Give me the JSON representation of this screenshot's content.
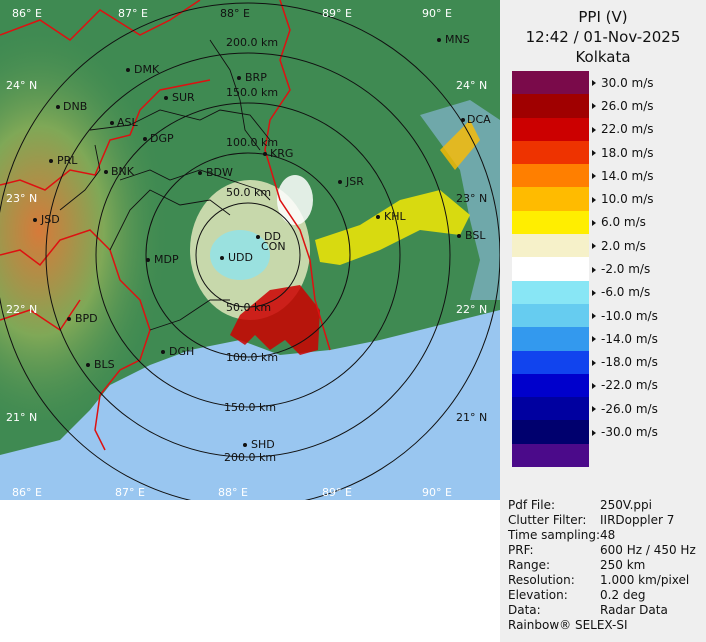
{
  "header": {
    "product": "PPI (V)",
    "datetime": "12:42 / 01-Nov-2025",
    "station": "Kolkata"
  },
  "colorscale": [
    {
      "label": "30.0 m/s",
      "color": "#7a0a4a"
    },
    {
      "label": "26.0 m/s",
      "color": "#a00000"
    },
    {
      "label": "22.0 m/s",
      "color": "#cc0000"
    },
    {
      "label": "18.0 m/s",
      "color": "#ee3300"
    },
    {
      "label": "14.0 m/s",
      "color": "#ff7f00"
    },
    {
      "label": "10.0 m/s",
      "color": "#ffbb00"
    },
    {
      "label": "6.0 m/s",
      "color": "#ffee00"
    },
    {
      "label": "2.0 m/s",
      "color": "#f6f1c9"
    },
    {
      "label": "-2.0 m/s",
      "color": "#ffffff"
    },
    {
      "label": "-6.0 m/s",
      "color": "#88e6f5"
    },
    {
      "label": "-10.0 m/s",
      "color": "#66ccf0"
    },
    {
      "label": "-14.0 m/s",
      "color": "#3399ee"
    },
    {
      "label": "-18.0 m/s",
      "color": "#1144ee"
    },
    {
      "label": "-22.0 m/s",
      "color": "#0000cc"
    },
    {
      "label": "-26.0 m/s",
      "color": "#0000a0"
    },
    {
      "label": "-30.0 m/s",
      "color": "#00006e"
    },
    {
      "label": "",
      "color": "#4b0a8a"
    }
  ],
  "info": [
    {
      "key": "Pdf File:",
      "value": "250V.ppi"
    },
    {
      "key": "Clutter Filter:",
      "value": "IIRDoppler 7"
    },
    {
      "key": "Time sampling:",
      "value": "48"
    },
    {
      "key": "PRF:",
      "value": "600 Hz / 450 Hz"
    },
    {
      "key": "Range:",
      "value": "250 km"
    },
    {
      "key": "Resolution:",
      "value": "1.000 km/pixel"
    },
    {
      "key": "Elevation:",
      "value": "0.2 deg"
    },
    {
      "key": "Data:",
      "value": "Radar Data"
    }
  ],
  "footer": "Rainbow® SELEX-SI",
  "map": {
    "lon_labels_top": [
      "86° E",
      "87° E",
      "88° E",
      "89° E",
      "90° E"
    ],
    "lon_labels_bottom": [
      "86° E",
      "87° E",
      "88° E",
      "89° E",
      "90° E"
    ],
    "lat_labels_left": [
      "24° N",
      "23° N",
      "22° N",
      "21° N"
    ],
    "lat_labels_right": [
      "24° N",
      "23° N",
      "22° N",
      "21° N"
    ],
    "range_rings": [
      "50.0 km",
      "100.0 km",
      "150.0 km",
      "200.0 km"
    ],
    "range_rings_south": [
      "50.0 km",
      "100.0 km",
      "150.0 km",
      "200.0 km"
    ],
    "cities": [
      "MNS",
      "DMK",
      "BRP",
      "DNB",
      "SUR",
      "DCA",
      "ASL",
      "DGP",
      "KRG",
      "PRL",
      "BNK",
      "BDW",
      "JSR",
      "KHL",
      "JSD",
      "DD",
      "BSL",
      "MDP",
      "UDD",
      "BPD",
      "DGH",
      "BLS",
      "SHD",
      "CON"
    ],
    "colors": {
      "land": "#3f8a52",
      "sea": "#99c6f0",
      "rings": "#111111",
      "borders": "#dd1111"
    }
  }
}
